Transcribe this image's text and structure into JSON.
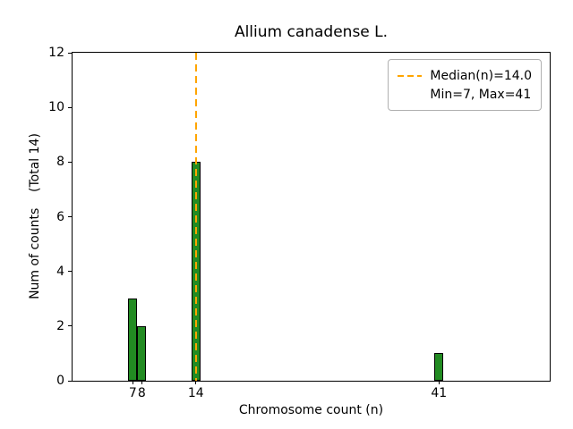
{
  "chart_data": {
    "type": "bar",
    "title": "Allium canadense L.",
    "xlabel": "Chromosome count (n)",
    "ylabel": "Num of counts    (Total 14)",
    "x": [
      7,
      8,
      14,
      41
    ],
    "values": [
      3,
      2,
      8,
      1
    ],
    "total_counts": 14,
    "bar_width": 1,
    "bar_color": "#228B22",
    "bar_edge_color": "#000000",
    "xlim": [
      0.3,
      53.3
    ],
    "ylim": [
      0,
      12
    ],
    "xticks": [
      7,
      8,
      14,
      41
    ],
    "yticks": [
      0,
      2,
      4,
      6,
      8,
      10,
      12
    ],
    "grid": false,
    "median_line": {
      "x": 14,
      "color": "#FFA500",
      "style": "dashed",
      "label": "Median(n)=14.0"
    },
    "legend": {
      "position": "upper right",
      "entries": [
        {
          "handle": "orange-dashed-line",
          "label": "Median(n)=14.0"
        },
        {
          "handle": "none",
          "label": "Min=7, Max=41"
        }
      ]
    }
  }
}
